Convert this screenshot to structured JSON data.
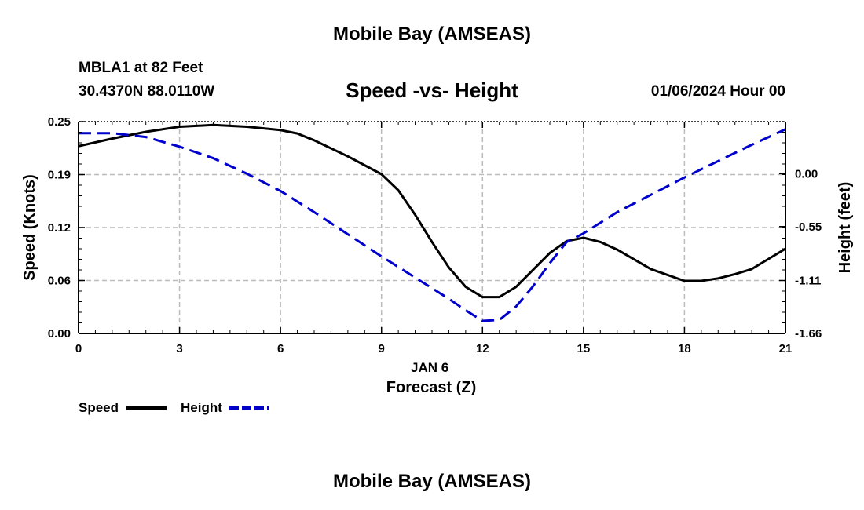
{
  "header": {
    "title": "Mobile Bay (AMSEAS)",
    "station": "MBLA1 at 82 Feet",
    "coordinates": "30.4370N  88.0110W",
    "datetime": "01/06/2024 Hour 00"
  },
  "footer": {
    "title": "Mobile Bay (AMSEAS)"
  },
  "chart_data": {
    "type": "line",
    "title": "Speed -vs- Height",
    "xlabel": "Forecast (Z)",
    "xsublabel": "JAN 6",
    "ylabel": "Speed (Knots)",
    "y2label": "Height (feet)",
    "xlim": [
      0,
      21
    ],
    "ylim": [
      0,
      0.25
    ],
    "y2lim": [
      -1.66,
      0.54
    ],
    "x_ticks": [
      0,
      3,
      6,
      9,
      12,
      15,
      18,
      21
    ],
    "x_tick_labels": [
      "0",
      "3",
      "6",
      "9",
      "12",
      "15",
      "18",
      "21"
    ],
    "y_ticks": [
      0,
      0.0625,
      0.125,
      0.1875,
      0.25
    ],
    "y_tick_labels": [
      "0.00",
      "0.06",
      "0.12",
      "0.19",
      "0.25"
    ],
    "y2_ticks": [
      -1.66,
      -1.11,
      -0.55,
      0.0
    ],
    "y2_tick_labels": [
      "-1.66",
      "-1.11",
      "-0.55",
      "0.00"
    ],
    "grid": true,
    "legend": "bottom-left",
    "series": [
      {
        "name": "Speed",
        "axis": "left",
        "color": "#000000",
        "dash": "solid",
        "x": [
          0,
          1,
          2,
          3,
          4,
          5,
          6,
          6.5,
          7,
          8,
          9,
          9.5,
          10,
          10.5,
          11,
          11.5,
          12,
          12.5,
          13,
          14,
          14.5,
          15,
          15.5,
          16,
          17,
          18,
          18.5,
          19,
          19.5,
          20,
          21
        ],
        "values": [
          0.221,
          0.23,
          0.238,
          0.244,
          0.246,
          0.244,
          0.24,
          0.236,
          0.228,
          0.209,
          0.188,
          0.169,
          0.14,
          0.108,
          0.078,
          0.055,
          0.043,
          0.043,
          0.055,
          0.095,
          0.109,
          0.113,
          0.108,
          0.099,
          0.076,
          0.062,
          0.062,
          0.065,
          0.07,
          0.076,
          0.1
        ]
      },
      {
        "name": "Height",
        "axis": "right",
        "color": "#0000cc",
        "dash": "dashed",
        "x": [
          0,
          1,
          2,
          3,
          4,
          5,
          6,
          7,
          8,
          9,
          10,
          11,
          11.5,
          12,
          12.5,
          13,
          13.5,
          14,
          14.5,
          15,
          16,
          17,
          18,
          19,
          20,
          21
        ],
        "values": [
          0.42,
          0.42,
          0.38,
          0.28,
          0.16,
          0.0,
          -0.18,
          -0.4,
          -0.63,
          -0.86,
          -1.08,
          -1.3,
          -1.42,
          -1.53,
          -1.52,
          -1.38,
          -1.17,
          -0.93,
          -0.71,
          -0.62,
          -0.4,
          -0.22,
          -0.04,
          0.13,
          0.3,
          0.46
        ]
      }
    ]
  }
}
